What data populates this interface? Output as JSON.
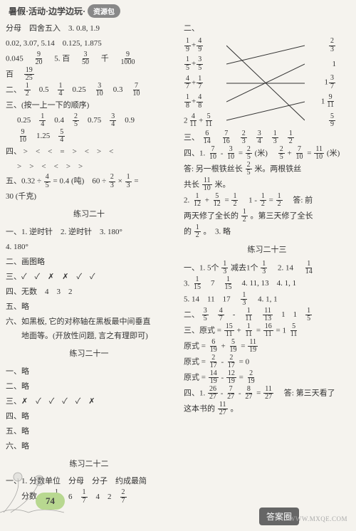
{
  "header": {
    "title": "暑假·活动·边学边玩·",
    "tag": "资源包"
  },
  "left": {
    "lines_a": [
      "分母　四舍五入　3. 0.8, 1.9",
      "0.02, 3.07, 5.14　0.125, 1.875"
    ],
    "line_b_pre": "0.045　",
    "line_b_f1n": "9",
    "line_b_f1d": "20",
    "line_b_mid": "　5. 百　",
    "line_b_f2n": "3",
    "line_b_f2d": "50",
    "line_b_mid2": "　千　",
    "line_b_f3n": "9",
    "line_b_f3d": "1000",
    "line_c_pre": "百　",
    "line_c_f1n": "19",
    "line_c_f1d": "25",
    "sec2_label": "二、",
    "sec2_items": [
      {
        "n": "1",
        "d": "2"
      },
      "0.5",
      {
        "n": "1",
        "d": "4"
      },
      "0.25",
      {
        "n": "3",
        "d": "10"
      },
      "0.3",
      {
        "n": "7",
        "d": "10"
      }
    ],
    "sec3_label": "三、(按一上一下的顺序)",
    "sec3_r1": [
      "0.25",
      {
        "n": "1",
        "d": "4"
      },
      "0.4",
      {
        "n": "2",
        "d": "5"
      },
      "0.75",
      {
        "n": "3",
        "d": "4"
      },
      "0.9"
    ],
    "sec3_r2": [
      {
        "n": "9",
        "d": "10"
      },
      "1.25",
      {
        "n": "5",
        "d": "4"
      }
    ],
    "sec4_label": "四、",
    "sec4_r1": ">　<　<　=　>　<　>　<",
    "sec4_r2": ">　>　<　<　>　>",
    "sec5_label": "五、0.32 ÷ ",
    "sec5_f1n": "4",
    "sec5_f1d": "5",
    "sec5_mid": " = 0.4 (吨)　60 ÷ ",
    "sec5_f2n": "2",
    "sec5_f2d": "3",
    "sec5_mid2": " × ",
    "sec5_f3n": "1",
    "sec5_f3d": "3",
    "sec5_end": " =",
    "sec5_ans": "30 (千克)",
    "ex20_title": "练习二十",
    "ex20_l1": "一、1. 逆时针　2. 逆时针　3. 180°",
    "ex20_l2": "4. 180°",
    "ex20_l3": "二、画图略",
    "ex20_l4": "三、✓　✓　✗　✗　✓　✓",
    "ex20_l5": "四、无数　4　3　2",
    "ex20_l6": "五、略",
    "ex20_l7": "六、如黑板, 它的对称轴在黑板最中间垂直",
    "ex20_l8": "　　地面等。(开放性问题, 言之有理即可)",
    "ex21_title": "练习二十一",
    "ex21_l1": "一、略",
    "ex21_l2": "二、略",
    "ex21_l3": "三、✗　✓　✓　✓　✓　✗",
    "ex21_l4": "四、略",
    "ex21_l5": "五、略",
    "ex21_l6": "六、略",
    "ex22_title": "练习二十二",
    "ex22_l1": "一、1. 分数单位　分母　分子　约成最简",
    "ex22_l2_pre": "　　分数　2. ",
    "ex22_l2_items": [
      {
        "n": "1",
        "d": "7"
      },
      "6",
      {
        "n": "1",
        "d": "7"
      },
      "4",
      "2",
      {
        "n": "2",
        "d": "7"
      }
    ]
  },
  "right": {
    "sec2_label": "二、",
    "match_left": [
      [
        {
          "n": "1",
          "d": "9"
        },
        "+",
        {
          "n": "4",
          "d": "9"
        }
      ],
      [
        {
          "n": "1",
          "d": "5"
        },
        "+",
        {
          "n": "3",
          "d": "5"
        }
      ],
      [
        {
          "n": "4",
          "d": "7"
        },
        "+",
        {
          "n": "1",
          "d": "7"
        }
      ],
      [
        {
          "n": "1",
          "d": "8"
        },
        "+",
        {
          "n": "4",
          "d": "8"
        }
      ],
      [
        "2",
        {
          "n": "4",
          "d": "11"
        },
        "+",
        {
          "n": "5",
          "d": "11"
        }
      ]
    ],
    "match_right": [
      [
        {
          "n": "2",
          "d": "3"
        }
      ],
      [
        "1"
      ],
      [
        "1",
        {
          "n": "3",
          "d": "7"
        }
      ],
      [
        "1",
        {
          "n": "9",
          "d": "11"
        }
      ],
      [
        {
          "n": "5",
          "d": "9"
        }
      ]
    ],
    "sec3_label": "三、",
    "sec3_items": [
      {
        "n": "6",
        "d": "14"
      },
      {
        "n": "7",
        "d": "16"
      },
      {
        "n": "2",
        "d": "3"
      },
      {
        "n": "3",
        "d": "4"
      },
      {
        "n": "1",
        "d": "3"
      },
      {
        "n": "1",
        "d": "2"
      }
    ],
    "sec4_label": "四、1. ",
    "sec4_f1n": "7",
    "sec4_f1d": "10",
    "sec4_m1": " - ",
    "sec4_f2n": "3",
    "sec4_f2d": "10",
    "sec4_m2": " = ",
    "sec4_f3n": "2",
    "sec4_f3d": "5",
    "sec4_m3": " (米)　",
    "sec4_f4n": "2",
    "sec4_f4d": "5",
    "sec4_m4": " + ",
    "sec4_f5n": "7",
    "sec4_f5d": "10",
    "sec4_m5": " = ",
    "sec4_f6n": "11",
    "sec4_f6d": "10",
    "sec4_end": " (米)",
    "sec4b_pre": "答: 另一根铁丝长",
    "sec4b_f1n": "2",
    "sec4b_f1d": "5",
    "sec4b_mid": "米。两根铁丝",
    "sec4c_pre": "共长",
    "sec4c_f1n": "11",
    "sec4c_f1d": "10",
    "sec4c_end": "米。",
    "sec4d_pre": "2. ",
    "sec4d_f1n": "1",
    "sec4d_f1d": "12",
    "sec4d_m1": " + ",
    "sec4d_f2n": "5",
    "sec4d_f2d": "12",
    "sec4d_m2": " = ",
    "sec4d_f3n": "1",
    "sec4d_f3d": "2",
    "sec4d_m3": "　1 - ",
    "sec4d_f4n": "1",
    "sec4d_f4d": "2",
    "sec4d_m4": " = ",
    "sec4d_f5n": "1",
    "sec4d_f5d": "2",
    "sec4d_end": "　答: 前",
    "sec4e_pre": "两天修了全长的",
    "sec4e_f1n": "1",
    "sec4e_f1d": "2",
    "sec4e_mid": "。第三天修了全长",
    "sec4f_pre": "的",
    "sec4f_f1n": "1",
    "sec4f_f1d": "2",
    "sec4f_end": "。　3. 略",
    "ex23_title": "练习二十三",
    "ex23_l1_pre": "一、1. 5个",
    "ex23_l1_f1n": "1",
    "ex23_l1_f1d": "3",
    "ex23_l1_m1": " 减去1个",
    "ex23_l1_f2n": "1",
    "ex23_l1_f2d": "3",
    "ex23_l1_m2": "　2. 14　",
    "ex23_l1_f3n": "1",
    "ex23_l1_f3d": "14",
    "ex23_l2_pre": "3. ",
    "ex23_l2_items": [
      {
        "n": "1",
        "d": "15"
      },
      "7",
      {
        "n": "1",
        "d": "15"
      },
      "4. 11, 13",
      "4. 1, 1"
    ],
    "ex23_l3_pre": "5. 14　11　17　",
    "ex23_l3_f1n": "1",
    "ex23_l3_f1d": "3",
    "ex23_l3_m1": "　4. 1, 1",
    "ex23_l4_pre": "二、",
    "ex23_l4_items": [
      {
        "n": "3",
        "d": "5"
      },
      {
        "n": "4",
        "d": "7"
      },
      "-",
      {
        "n": "1",
        "d": "11"
      },
      {
        "n": "11",
        "d": "13"
      },
      "1",
      "1",
      {
        "n": "1",
        "d": "5"
      }
    ],
    "ex23_l5_pre": "三、原式 = ",
    "ex23_l5_f1n": "15",
    "ex23_l5_f1d": "11",
    "ex23_l5_m1": " + ",
    "ex23_l5_f2n": "1",
    "ex23_l5_f2d": "11",
    "ex23_l5_m2": " = ",
    "ex23_l5_f3n": "16",
    "ex23_l5_f3d": "11",
    "ex23_l5_m3": " = 1",
    "ex23_l5_f4n": "5",
    "ex23_l5_f4d": "11",
    "ex23_l6_pre": "原式 = ",
    "ex23_l6_f1n": "6",
    "ex23_l6_f1d": "19",
    "ex23_l6_m1": " + ",
    "ex23_l6_f2n": "5",
    "ex23_l6_f2d": "19",
    "ex23_l6_m2": " = ",
    "ex23_l6_f3n": "11",
    "ex23_l6_f3d": "19",
    "ex23_l7_pre": "原式 = ",
    "ex23_l7_f1n": "2",
    "ex23_l7_f1d": "17",
    "ex23_l7_m1": " - ",
    "ex23_l7_f2n": "2",
    "ex23_l7_f2d": "17",
    "ex23_l7_m2": " = 0",
    "ex23_l8_pre": "原式 = ",
    "ex23_l8_f1n": "14",
    "ex23_l8_f1d": "19",
    "ex23_l8_m1": " - ",
    "ex23_l8_f2n": "12",
    "ex23_l8_f2d": "19",
    "ex23_l8_m2": " = ",
    "ex23_l8_f3n": "2",
    "ex23_l8_f3d": "19",
    "ex23_l9_pre": "四、1. ",
    "ex23_l9_f1n": "26",
    "ex23_l9_f1d": "27",
    "ex23_l9_m1": " - ",
    "ex23_l9_f2n": "7",
    "ex23_l9_f2d": "27",
    "ex23_l9_m2": " - ",
    "ex23_l9_f3n": "8",
    "ex23_l9_f3d": "27",
    "ex23_l9_m3": " = ",
    "ex23_l9_f4n": "11",
    "ex23_l9_f4d": "27",
    "ex23_l9_end": "　答: 第三天看了",
    "ex23_l10_pre": "这本书的",
    "ex23_l10_f1n": "11",
    "ex23_l10_f1d": "27",
    "ex23_l10_end": "。"
  },
  "page_num": "74",
  "watermark": "WWW.MXQE.COM",
  "watermark_badge": "答案圈"
}
